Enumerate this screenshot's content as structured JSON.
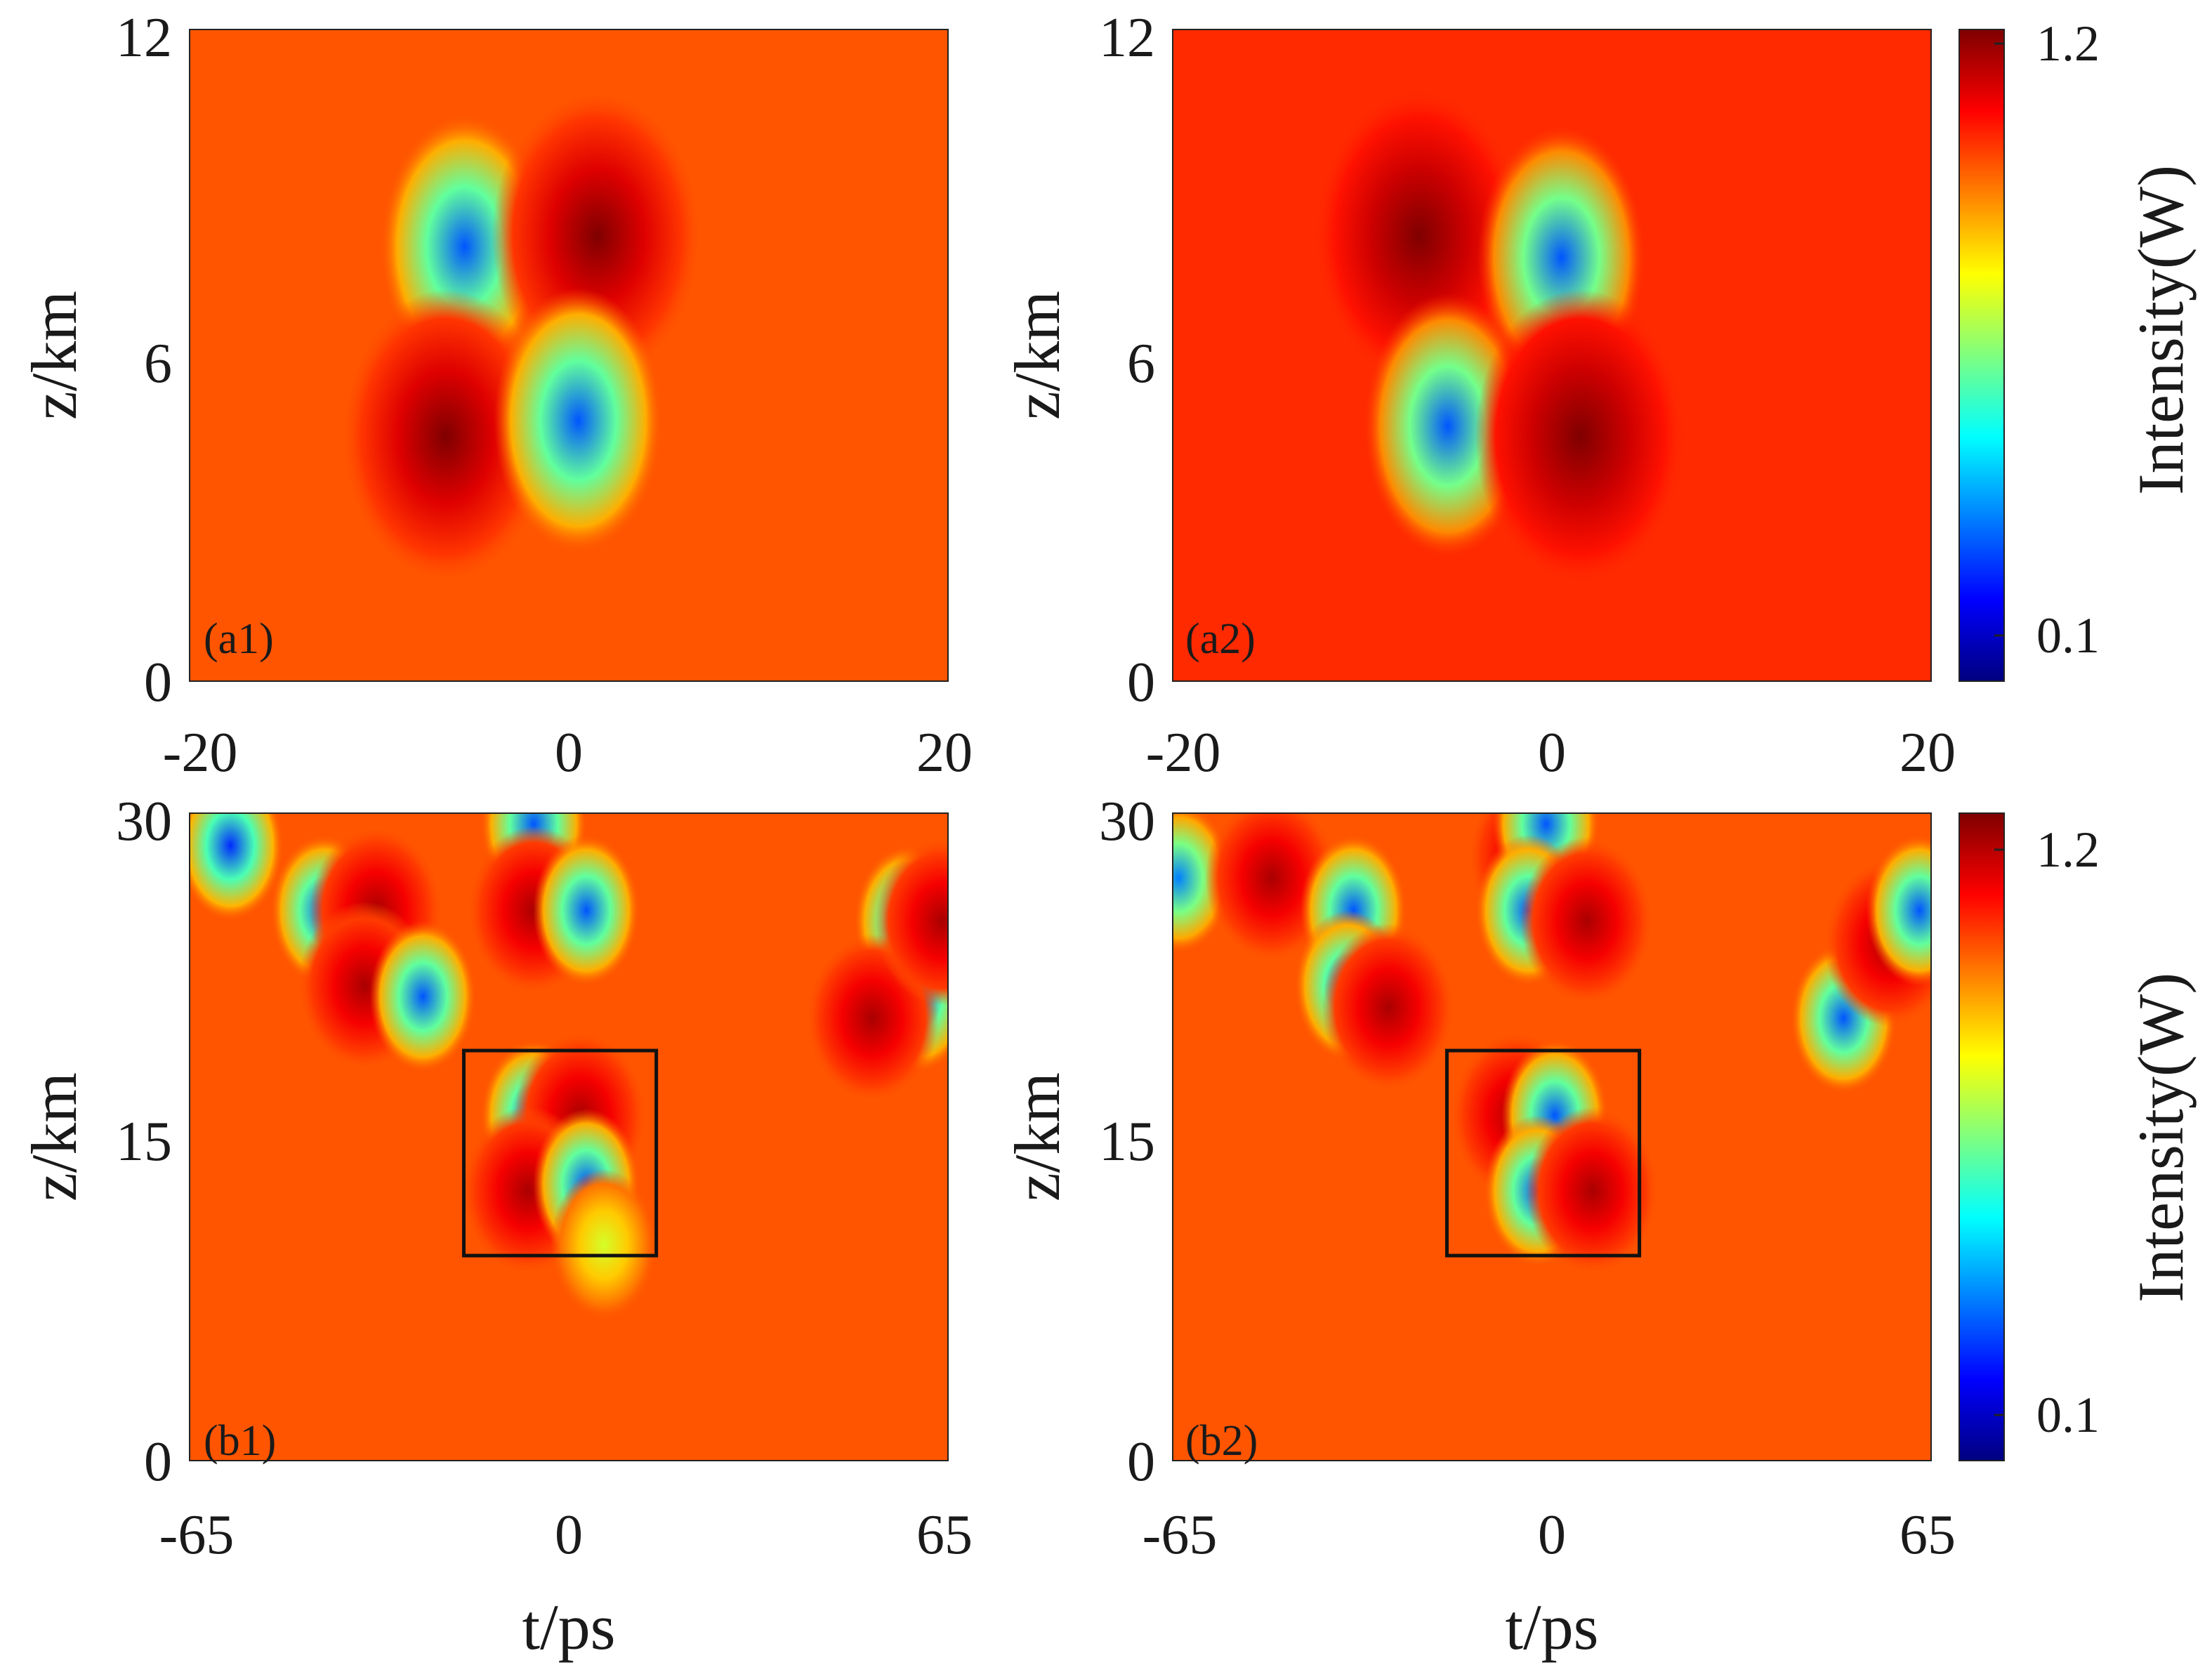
{
  "figure": {
    "colorbar_label": "Intensity(W)",
    "colorbar_ticks": [
      "1.2",
      "0.1"
    ],
    "colormap": [
      "#00007f",
      "#0000ff",
      "#007fff",
      "#00ffff",
      "#7fff7f",
      "#ffff00",
      "#ff7f00",
      "#ff0000",
      "#7f0000"
    ]
  },
  "chart_data": [
    {
      "type": "heatmap",
      "panel_label": "(a1)",
      "xlabel": "",
      "ylabel": "z/km",
      "xlim": [
        -20,
        20
      ],
      "ylim": [
        0,
        12
      ],
      "xticks": [
        "-20",
        "0",
        "20"
      ],
      "yticks": [
        "0",
        "6",
        "12"
      ],
      "color_range": [
        0.05,
        1.25
      ],
      "background_intensity": 1.0,
      "features": [
        {
          "t": -5.5,
          "z": 8.0,
          "intensity": 0.3,
          "kind": "dip"
        },
        {
          "t": 1.5,
          "z": 8.2,
          "intensity": 1.25,
          "kind": "peak"
        },
        {
          "t": -6.5,
          "z": 4.5,
          "intensity": 1.25,
          "kind": "peak"
        },
        {
          "t": 0.5,
          "z": 4.8,
          "intensity": 0.3,
          "kind": "dip"
        }
      ]
    },
    {
      "type": "heatmap",
      "panel_label": "(a2)",
      "xlabel": "",
      "ylabel": "z/km",
      "xlim": [
        -20,
        20
      ],
      "ylim": [
        0,
        12
      ],
      "xticks": [
        "-20",
        "0",
        "20"
      ],
      "yticks": [
        "0",
        "6",
        "12"
      ],
      "color_range": [
        0.05,
        1.25
      ],
      "background_intensity": 1.05,
      "features": [
        {
          "t": -7,
          "z": 8.2,
          "intensity": 1.25,
          "kind": "peak"
        },
        {
          "t": 0.5,
          "z": 7.8,
          "intensity": 0.3,
          "kind": "dip"
        },
        {
          "t": -5.5,
          "z": 4.7,
          "intensity": 0.3,
          "kind": "dip"
        },
        {
          "t": 1.5,
          "z": 4.5,
          "intensity": 1.25,
          "kind": "peak"
        }
      ]
    },
    {
      "type": "heatmap",
      "panel_label": "(b1)",
      "xlabel": "t/ps",
      "ylabel": "z/km",
      "xlim": [
        -65,
        65
      ],
      "ylim": [
        0,
        30
      ],
      "xticks": [
        "-65",
        "0",
        "65"
      ],
      "yticks": [
        "0",
        "15",
        "30"
      ],
      "color_range": [
        0.05,
        1.25
      ],
      "background_intensity": 1.0,
      "highlight_box": {
        "t": [
          -18,
          15
        ],
        "z": [
          9.5,
          19
        ]
      },
      "features": [
        {
          "t": -58,
          "z": 28.5,
          "intensity": 0.25,
          "kind": "dip"
        },
        {
          "t": -42,
          "z": 25.5,
          "intensity": 0.3,
          "kind": "dip"
        },
        {
          "t": -33,
          "z": 25.5,
          "intensity": 1.2,
          "kind": "peak"
        },
        {
          "t": -35,
          "z": 22,
          "intensity": 1.2,
          "kind": "peak"
        },
        {
          "t": -25,
          "z": 21.5,
          "intensity": 0.3,
          "kind": "dip"
        },
        {
          "t": -6,
          "z": 29.5,
          "intensity": 0.3,
          "kind": "dip"
        },
        {
          "t": -6,
          "z": 25.5,
          "intensity": 1.2,
          "kind": "peak"
        },
        {
          "t": 3,
          "z": 25.5,
          "intensity": 0.3,
          "kind": "dip"
        },
        {
          "t": -6,
          "z": 16,
          "intensity": 0.3,
          "kind": "dip"
        },
        {
          "t": 2,
          "z": 16,
          "intensity": 1.2,
          "kind": "peak"
        },
        {
          "t": -7,
          "z": 12.5,
          "intensity": 1.2,
          "kind": "peak"
        },
        {
          "t": 3,
          "z": 12.8,
          "intensity": 0.3,
          "kind": "dip"
        },
        {
          "t": 6,
          "z": 10,
          "intensity": 0.75,
          "kind": "dip"
        },
        {
          "t": 58,
          "z": 25,
          "intensity": 0.3,
          "kind": "dip"
        },
        {
          "t": 60,
          "z": 21.5,
          "intensity": 0.3,
          "kind": "dip"
        },
        {
          "t": 52,
          "z": 20.5,
          "intensity": 1.2,
          "kind": "peak"
        },
        {
          "t": 64,
          "z": 25,
          "intensity": 1.2,
          "kind": "peak"
        }
      ]
    },
    {
      "type": "heatmap",
      "panel_label": "(b2)",
      "xlabel": "t/ps",
      "ylabel": "z/km",
      "xlim": [
        -65,
        65
      ],
      "ylim": [
        0,
        30
      ],
      "xticks": [
        "-65",
        "0",
        "65"
      ],
      "yticks": [
        "0",
        "15",
        "30"
      ],
      "color_range": [
        0.05,
        1.25
      ],
      "background_intensity": 1.0,
      "highlight_box": {
        "t": [
          -18,
          15
        ],
        "z": [
          9.5,
          19
        ]
      },
      "features": [
        {
          "t": -64,
          "z": 27,
          "intensity": 0.35,
          "kind": "dip"
        },
        {
          "t": -48,
          "z": 27,
          "intensity": 1.2,
          "kind": "peak"
        },
        {
          "t": -34,
          "z": 25.5,
          "intensity": 0.3,
          "kind": "dip"
        },
        {
          "t": -35,
          "z": 22,
          "intensity": 0.3,
          "kind": "dip"
        },
        {
          "t": -28,
          "z": 21,
          "intensity": 1.2,
          "kind": "peak"
        },
        {
          "t": -3,
          "z": 28,
          "intensity": 1.2,
          "kind": "peak"
        },
        {
          "t": -1,
          "z": 29.5,
          "intensity": 0.3,
          "kind": "dip"
        },
        {
          "t": -4,
          "z": 25.5,
          "intensity": 0.3,
          "kind": "dip"
        },
        {
          "t": 6,
          "z": 25,
          "intensity": 1.2,
          "kind": "peak"
        },
        {
          "t": -6,
          "z": 16,
          "intensity": 1.2,
          "kind": "peak"
        },
        {
          "t": 0.5,
          "z": 16,
          "intensity": 0.3,
          "kind": "dip"
        },
        {
          "t": -2.5,
          "z": 12.5,
          "intensity": 0.3,
          "kind": "dip"
        },
        {
          "t": 7,
          "z": 12.5,
          "intensity": 1.2,
          "kind": "peak"
        },
        {
          "t": 50,
          "z": 20.5,
          "intensity": 0.3,
          "kind": "dip"
        },
        {
          "t": 58,
          "z": 24,
          "intensity": 1.2,
          "kind": "peak"
        },
        {
          "t": 63,
          "z": 25.5,
          "intensity": 0.3,
          "kind": "dip"
        }
      ]
    }
  ]
}
